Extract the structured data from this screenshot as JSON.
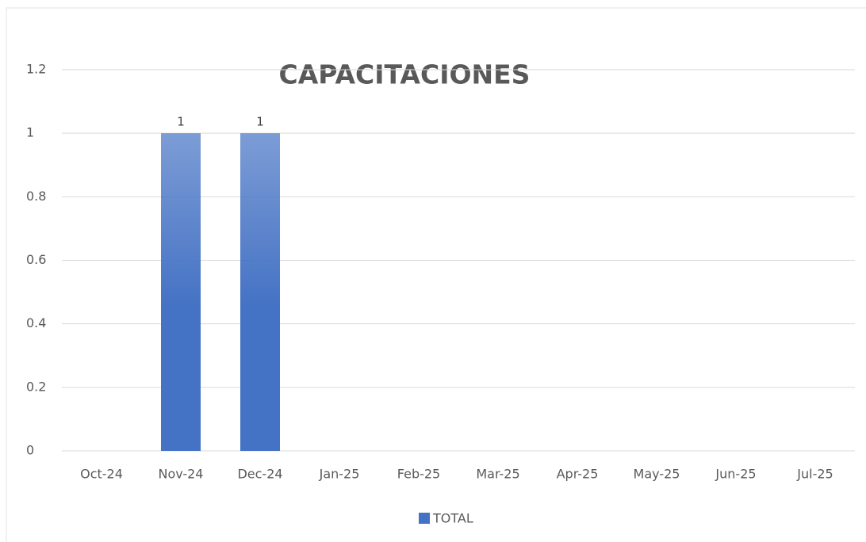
{
  "chart_data": {
    "type": "bar",
    "title": "CAPACITACIONES",
    "categories": [
      "Oct-24",
      "Nov-24",
      "Dec-24",
      "Jan-25",
      "Feb-25",
      "Mar-25",
      "Apr-25",
      "May-25",
      "Jun-25",
      "Jul-25"
    ],
    "series": [
      {
        "name": "TOTAL",
        "color": "#4472c4",
        "values": [
          null,
          1,
          1,
          null,
          null,
          null,
          null,
          null,
          null,
          null
        ]
      }
    ],
    "ylim": [
      0,
      1.2
    ],
    "yticks": [
      0,
      0.2,
      0.4,
      0.6,
      0.8,
      1,
      1.2
    ],
    "grid": true,
    "legend": "bottom"
  }
}
